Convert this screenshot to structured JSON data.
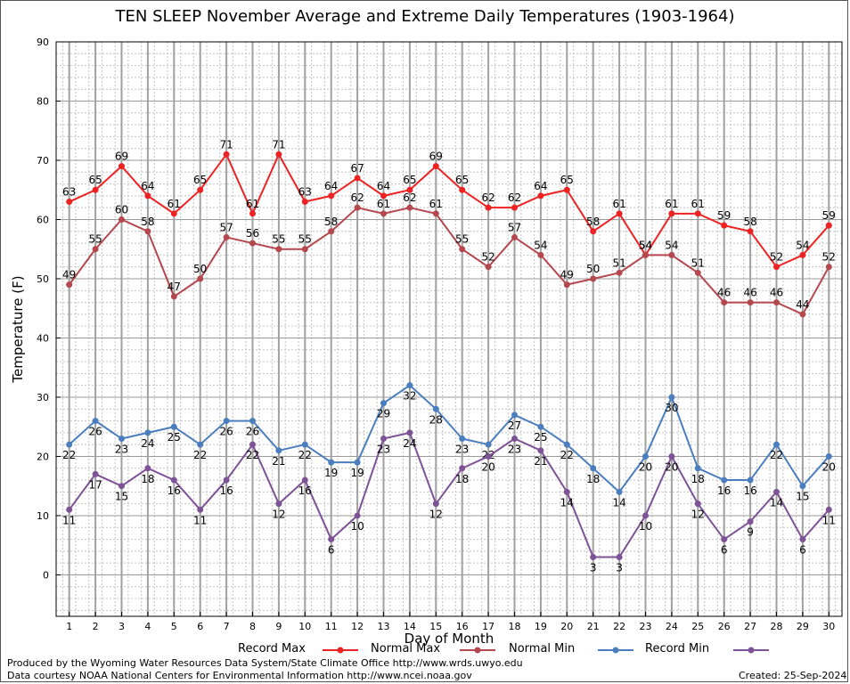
{
  "chart_data": {
    "type": "line",
    "title": "TEN SLEEP November Average and Extreme Daily Temperatures (1903-1964)",
    "xlabel": "Day of Month",
    "ylabel": "Temperature (F)",
    "xlim": [
      0.5,
      30.5
    ],
    "ylim": [
      -7,
      90
    ],
    "yticks": [
      0,
      10,
      20,
      30,
      40,
      50,
      60,
      70,
      80,
      90
    ],
    "x": [
      1,
      2,
      3,
      4,
      5,
      6,
      7,
      8,
      9,
      10,
      11,
      12,
      13,
      14,
      15,
      16,
      17,
      18,
      19,
      20,
      21,
      22,
      23,
      24,
      25,
      26,
      27,
      28,
      29,
      30
    ],
    "grid": true,
    "legend_position": "bottom",
    "series": [
      {
        "name": "Record Max",
        "color": "#ee2222",
        "values": [
          63,
          65,
          69,
          64,
          61,
          65,
          71,
          61,
          71,
          63,
          64,
          67,
          64,
          65,
          69,
          65,
          62,
          62,
          64,
          65,
          58,
          61,
          54,
          61,
          61,
          59,
          58,
          52,
          54,
          59
        ]
      },
      {
        "name": "Normal Max",
        "color": "#b5474e",
        "values": [
          49,
          55,
          60,
          58,
          47,
          50,
          57,
          56,
          55,
          55,
          58,
          62,
          61,
          62,
          61,
          55,
          52,
          57,
          54,
          49,
          50,
          51,
          54,
          54,
          51,
          46,
          46,
          46,
          44,
          52
        ]
      },
      {
        "name": "Normal Min",
        "color": "#4b7ebf",
        "values": [
          22,
          26,
          23,
          24,
          25,
          22,
          26,
          26,
          21,
          22,
          19,
          19,
          29,
          32,
          28,
          23,
          22,
          27,
          25,
          22,
          18,
          14,
          20,
          30,
          18,
          16,
          16,
          22,
          15,
          20
        ]
      },
      {
        "name": "Record Min",
        "color": "#7e5296",
        "values": [
          11,
          17,
          15,
          18,
          16,
          11,
          16,
          22,
          12,
          16,
          6,
          10,
          23,
          24,
          12,
          18,
          20,
          23,
          21,
          14,
          3,
          3,
          10,
          20,
          12,
          6,
          9,
          14,
          6,
          11
        ]
      }
    ]
  },
  "footer": {
    "produced_by": "Produced by the Wyoming Water Resources Data System/State Climate Office http://www.wrds.uwyo.edu",
    "courtesy": "Data courtesy NOAA National Centers for Environmental Information http://www.ncei.noaa.gov",
    "created": "Created:  25-Sep-2024"
  }
}
